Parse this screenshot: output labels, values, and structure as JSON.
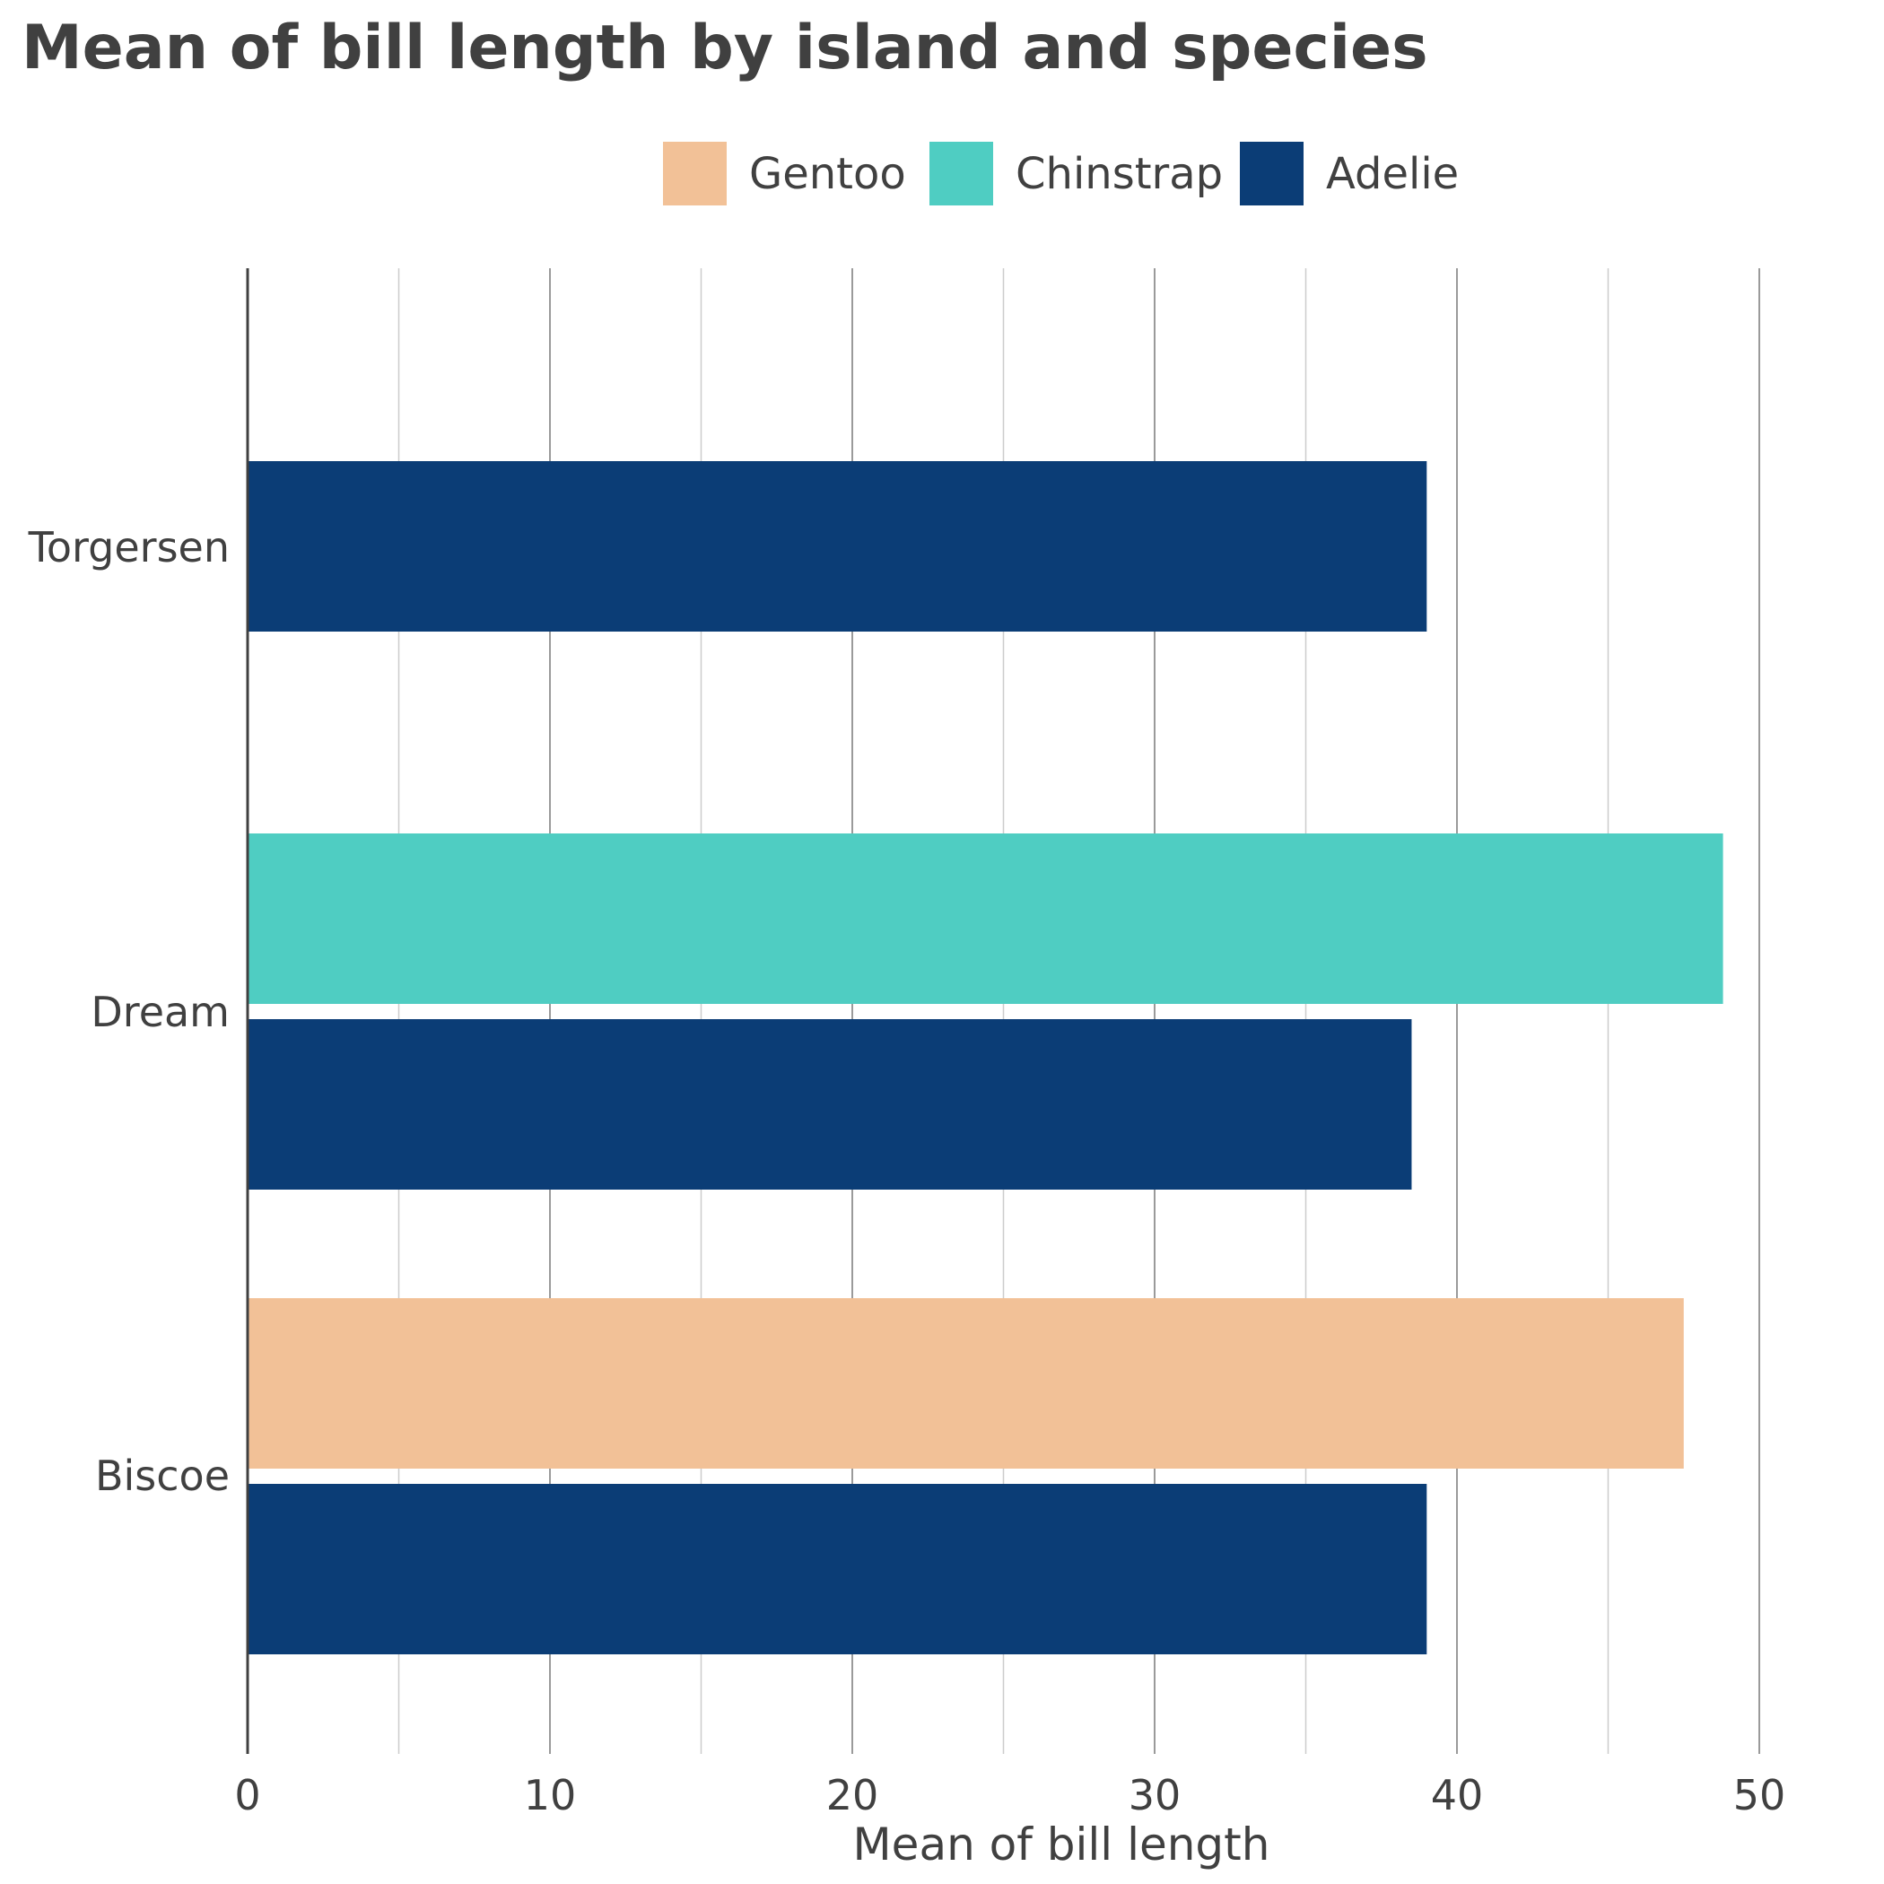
{
  "chart_data": {
    "type": "bar",
    "orientation": "horizontal",
    "title": "Mean of bill length by island and species",
    "xlabel": "Mean of bill length",
    "ylabel": "",
    "xlim": [
      0,
      50
    ],
    "xticks": [
      0,
      10,
      20,
      30,
      40,
      50
    ],
    "grid": true,
    "legend_position": "top",
    "categories": [
      "Torgersen",
      "Dream",
      "Biscoe"
    ],
    "series": [
      {
        "name": "Gentoo",
        "color": "#f2c197",
        "values": [
          null,
          null,
          47.5
        ]
      },
      {
        "name": "Chinstrap",
        "color": "#4fcdc2",
        "values": [
          null,
          48.8,
          null
        ]
      },
      {
        "name": "Adelie",
        "color": "#0b3d76",
        "values": [
          39.0,
          38.5,
          39.0
        ]
      }
    ]
  }
}
